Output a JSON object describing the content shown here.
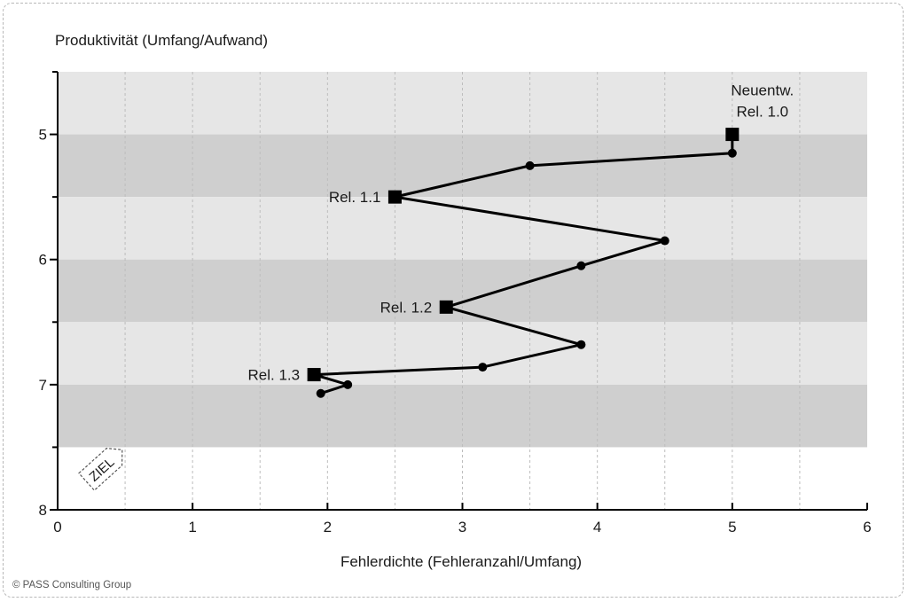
{
  "chart_data": {
    "type": "line",
    "ylabel": "Produktivität (Umfang/Aufwand)",
    "xlabel": "Fehlerdichte (Fehleranzahl/Umfang)",
    "xlim": [
      0,
      6
    ],
    "ylim": [
      4.5,
      8
    ],
    "y_axis_inverted": true,
    "xticks": [
      "0",
      "1",
      "2",
      "3",
      "4",
      "5",
      "6"
    ],
    "yticks": [
      "5",
      "6",
      "7",
      "8"
    ],
    "grid": "vertical dashed at 0.5 steps; horizontal bands alternating light/dark gray every 0.5",
    "series": [
      {
        "points": [
          {
            "x": 5.0,
            "y": 5.0,
            "marker": "square",
            "label": [
              "Neuentw.",
              "Rel. 1.0"
            ]
          },
          {
            "x": 5.0,
            "y": 5.15,
            "marker": "circle"
          },
          {
            "x": 3.5,
            "y": 5.25,
            "marker": "circle"
          },
          {
            "x": 2.5,
            "y": 5.5,
            "marker": "square",
            "label": [
              "Rel. 1.1"
            ]
          },
          {
            "x": 4.5,
            "y": 5.85,
            "marker": "circle"
          },
          {
            "x": 3.88,
            "y": 6.05,
            "marker": "circle"
          },
          {
            "x": 2.88,
            "y": 6.38,
            "marker": "square",
            "label": [
              "Rel. 1.2"
            ]
          },
          {
            "x": 3.88,
            "y": 6.68,
            "marker": "circle"
          },
          {
            "x": 3.15,
            "y": 6.86,
            "marker": "circle"
          },
          {
            "x": 1.9,
            "y": 6.92,
            "marker": "square",
            "label": [
              "Rel. 1.3"
            ]
          },
          {
            "x": 2.15,
            "y": 7.0,
            "marker": "circle"
          },
          {
            "x": 1.95,
            "y": 7.07,
            "marker": "circle"
          }
        ]
      }
    ],
    "annotations": [
      {
        "text": "ZIEL",
        "near": "bottom-left corner"
      }
    ]
  },
  "footer": {
    "copyright": "© PASS Consulting Group"
  }
}
